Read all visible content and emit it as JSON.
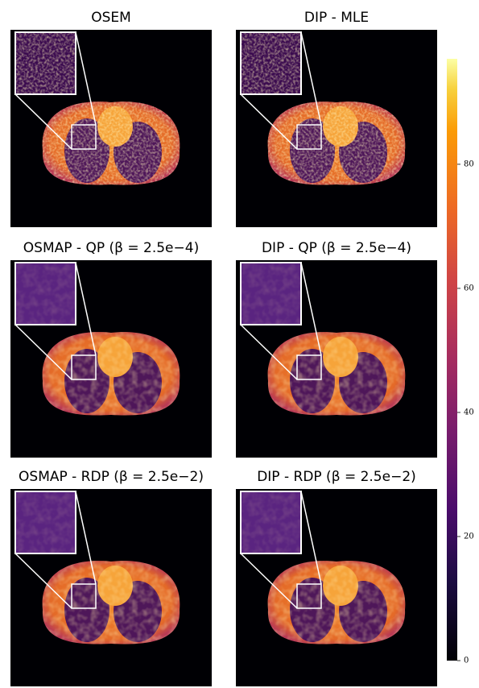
{
  "panels": [
    {
      "title": "OSEM"
    },
    {
      "title": "DIP - MLE"
    },
    {
      "title": "OSMAP - QP (β = 2.5e−4)"
    },
    {
      "title": "DIP - QP (β = 2.5e−4)"
    },
    {
      "title": "OSMAP - RDP (β = 2.5e−2)"
    },
    {
      "title": "DIP - RDP (β = 2.5e−2)"
    }
  ],
  "colorbar": {
    "lim": [
      0,
      97
    ],
    "ticks": [
      0,
      20,
      40,
      60,
      80
    ]
  }
}
